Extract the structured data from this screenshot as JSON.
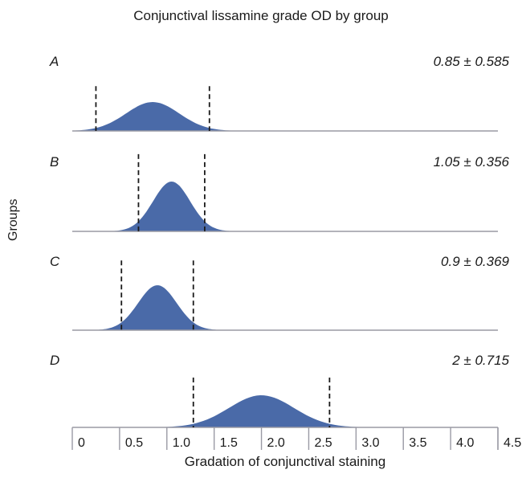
{
  "chart_data": {
    "type": "area",
    "title": "Conjunctival lissamine grade OD by group",
    "xlabel": "Gradation of conjunctival staining",
    "ylabel": "Groups",
    "xlim": [
      0,
      4.5
    ],
    "tick_labels": [
      "0",
      "0.5",
      "1.0",
      "1.5",
      "2.0",
      "2.5",
      "3.0",
      "3.5",
      "4.0",
      "4.5"
    ],
    "panels": [
      {
        "name": "A",
        "stat_label": "0.85 ± 0.585",
        "mean": 0.85,
        "sd": 0.585,
        "dashed_lines": [
          0.25,
          1.45
        ]
      },
      {
        "name": "B",
        "stat_label": "1.05 ± 0.356",
        "mean": 1.05,
        "sd": 0.356,
        "dashed_lines": [
          0.7,
          1.4
        ]
      },
      {
        "name": "C",
        "stat_label": "0.9 ± 0.369",
        "mean": 0.9,
        "sd": 0.369,
        "dashed_lines": [
          0.52,
          1.28
        ]
      },
      {
        "name": "D",
        "stat_label": "2 ± 0.715",
        "mean": 2.0,
        "sd": 0.715,
        "dashed_lines": [
          1.28,
          2.72
        ]
      }
    ],
    "fill_color": "#4a6aa8",
    "baseline_color": "#9a9aa4"
  }
}
